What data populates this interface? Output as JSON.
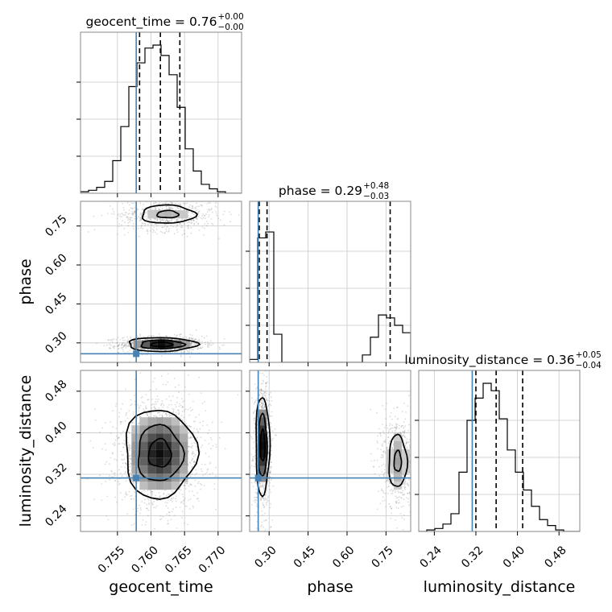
{
  "chart_data": {
    "type": "corner",
    "params": [
      {
        "name": "geocent_time",
        "label": "geocent_time",
        "range": [
          0.7495,
          0.7735
        ],
        "ticks": [
          0.755,
          0.76,
          0.765,
          0.77
        ],
        "tick_labels": [
          "0.755",
          "0.760",
          "0.765",
          "0.770"
        ],
        "truth": 0.7578,
        "quantiles": [
          0.7583,
          0.7614,
          0.7643
        ]
      },
      {
        "name": "phase",
        "label": "phase",
        "range": [
          0.225,
          0.845
        ],
        "ticks": [
          0.3,
          0.45,
          0.6,
          0.75
        ],
        "tick_labels": [
          "0.30",
          "0.45",
          "0.60",
          "0.75"
        ],
        "truth": 0.258,
        "quantiles": [
          0.262,
          0.292,
          0.766
        ]
      },
      {
        "name": "luminosity_distance",
        "label": "luminosity_distance",
        "range": [
          0.21,
          0.52
        ],
        "ticks": [
          0.24,
          0.32,
          0.4,
          0.48
        ],
        "tick_labels": [
          "0.24",
          "0.32",
          "0.40",
          "0.48"
        ],
        "truth": 0.313,
        "quantiles": [
          0.32,
          0.359,
          0.41
        ]
      }
    ],
    "titles": [
      {
        "param": "geocent_time",
        "text": "geocent_time = 0.76",
        "sup": "+0.00",
        "sub": "−0.00"
      },
      {
        "param": "phase",
        "text": "phase = 0.29",
        "sup": "+0.48",
        "sub": "−0.03"
      },
      {
        "param": "luminosity_distance",
        "text": "luminosity_distance = 0.36",
        "sup": "+0.05",
        "sub": "−0.04"
      }
    ],
    "hist": [
      {
        "param": "geocent_time",
        "bin_start": 0.7495,
        "bin_width": 0.0012,
        "counts": [
          0.01,
          0.02,
          0.04,
          0.08,
          0.22,
          0.45,
          0.72,
          0.88,
          0.98,
          1.0,
          0.93,
          0.8,
          0.58,
          0.3,
          0.15,
          0.06,
          0.03,
          0.01,
          0.0,
          0.0
        ]
      },
      {
        "param": "phase",
        "bin_start": 0.225,
        "bin_width": 0.031,
        "counts": [
          0.02,
          0.84,
          0.88,
          0.19,
          0.0,
          0.0,
          0.0,
          0.0,
          0.0,
          0.0,
          0.0,
          0.0,
          0.0,
          0.0,
          0.05,
          0.17,
          0.32,
          0.3,
          0.25,
          0.2
        ]
      },
      {
        "param": "luminosity_distance",
        "bin_start": 0.21,
        "bin_width": 0.0155,
        "counts": [
          0.0,
          0.01,
          0.02,
          0.05,
          0.12,
          0.4,
          0.75,
          0.9,
          1.0,
          0.95,
          0.76,
          0.55,
          0.4,
          0.28,
          0.17,
          0.08,
          0.04,
          0.01,
          0.0,
          0.0
        ]
      }
    ],
    "joint": [
      {
        "x": "geocent_time",
        "y": "phase",
        "clusters": [
          {
            "cx": 0.7616,
            "cy": 0.294,
            "sx": 0.0027,
            "sy": 0.014,
            "n": 1100,
            "peak": 1.0
          },
          {
            "cx": 0.7625,
            "cy": 0.795,
            "sx": 0.0032,
            "sy": 0.028,
            "n": 650,
            "peak": 0.3
          }
        ]
      },
      {
        "x": "geocent_time",
        "y": "luminosity_distance",
        "clusters": [
          {
            "cx": 0.7613,
            "cy": 0.36,
            "sx": 0.0028,
            "sy": 0.045,
            "n": 1800,
            "peak": 1.0
          }
        ]
      },
      {
        "x": "phase",
        "y": "luminosity_distance",
        "clusters": [
          {
            "cx": 0.275,
            "cy": 0.375,
            "sx": 0.014,
            "sy": 0.05,
            "n": 1100,
            "peak": 1.0
          },
          {
            "cx": 0.795,
            "cy": 0.345,
            "sx": 0.028,
            "sy": 0.04,
            "n": 650,
            "peak": 0.4
          }
        ]
      }
    ],
    "colors": {
      "truth": "#4682b4",
      "hist_line": "#000000",
      "quantile": "#000000",
      "grid": "#c8c8c8",
      "axes": "#888888",
      "points": "#888888"
    },
    "grid": true
  }
}
